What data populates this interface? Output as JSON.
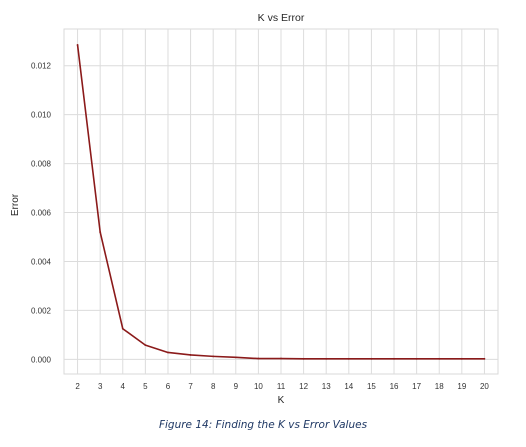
{
  "chart_data": {
    "type": "line",
    "title": "K vs Error",
    "xlabel": "K",
    "ylabel": "Error",
    "x": [
      2,
      3,
      4,
      5,
      6,
      7,
      8,
      9,
      10,
      11,
      12,
      13,
      14,
      15,
      16,
      17,
      18,
      19,
      20
    ],
    "series": [
      {
        "color": "#8b1a1a",
        "values": [
          0.01285,
          0.0052,
          0.00125,
          0.00058,
          0.00028,
          0.00018,
          0.00012,
          8e-05,
          3e-05,
          3e-05,
          2e-05,
          2e-05,
          2e-05,
          2e-05,
          2e-05,
          2e-05,
          2e-05,
          2e-05,
          2e-05
        ]
      }
    ],
    "xticks": [
      "2",
      "3",
      "4",
      "5",
      "6",
      "7",
      "8",
      "9",
      "10",
      "11",
      "12",
      "13",
      "14",
      "15",
      "16",
      "17",
      "18",
      "19",
      "20"
    ],
    "yticks": [
      "0.000",
      "0.002",
      "0.004",
      "0.006",
      "0.008",
      "0.010",
      "0.012"
    ],
    "ytick_values": [
      0,
      0.002,
      0.004,
      0.006,
      0.008,
      0.01,
      0.012
    ],
    "xlim": [
      1.4,
      20.6
    ],
    "ylim": [
      -0.0006,
      0.0135
    ],
    "grid": true,
    "legend": "none"
  },
  "caption": "Figure 14: Finding the K vs Error Values"
}
